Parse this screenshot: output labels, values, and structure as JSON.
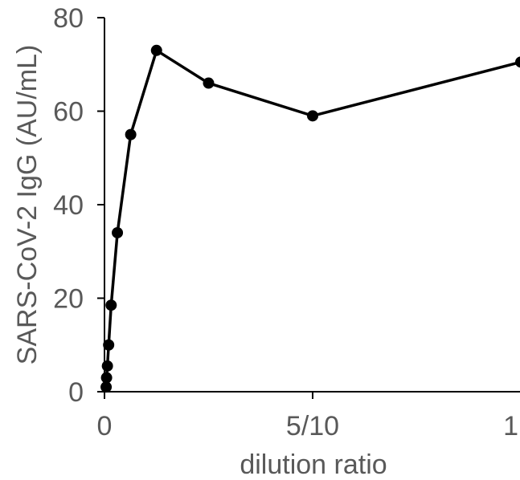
{
  "chart_data": {
    "type": "line",
    "title": "",
    "xlabel": "dilution ratio",
    "ylabel": "SARS-CoV-2 IgG (AU/mL)",
    "xlim": [
      0,
      1
    ],
    "ylim": [
      0,
      80
    ],
    "yticks": [
      0,
      20,
      40,
      60,
      80
    ],
    "xticks": [
      {
        "value": 0,
        "label": "0"
      },
      {
        "value": 0.5,
        "label": "5/10"
      },
      {
        "value": 1,
        "label": "1"
      }
    ],
    "grid": false,
    "legend": "none",
    "series": [
      {
        "color": "#000000",
        "x": [
          0.004,
          0.005,
          0.007,
          0.01,
          0.016,
          0.031,
          0.063,
          0.125,
          0.25,
          0.5,
          1.0
        ],
        "y": [
          1,
          3,
          5.5,
          10,
          18.5,
          34,
          55,
          73,
          66,
          59,
          70.5
        ]
      }
    ]
  }
}
